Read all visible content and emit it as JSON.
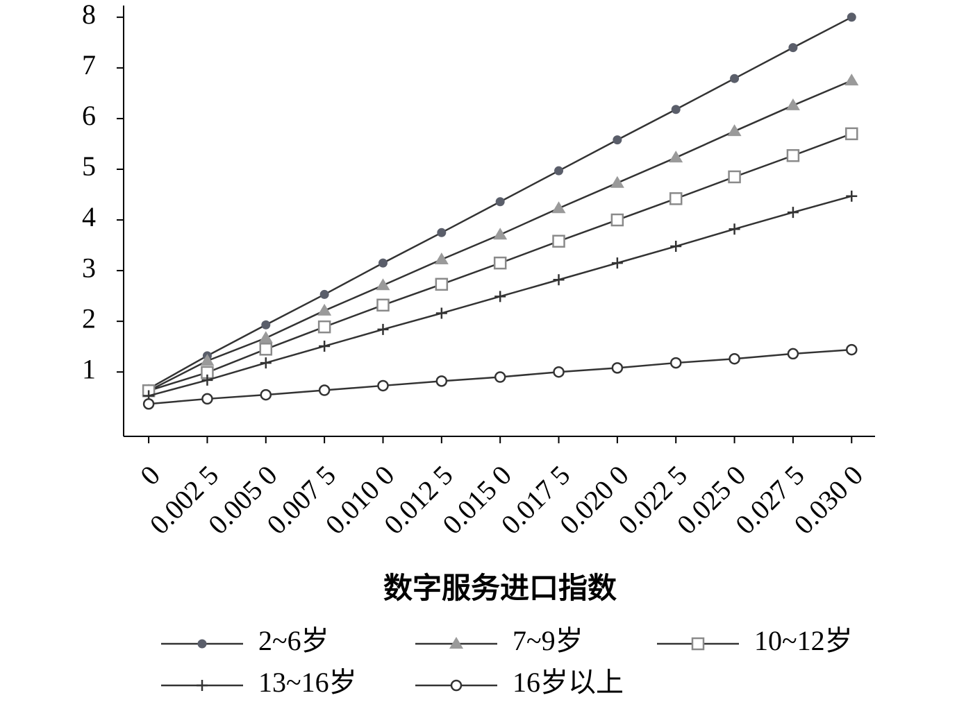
{
  "chart_data": {
    "type": "line",
    "x_label": "数字服务进口指数",
    "x": [
      0,
      0.0025,
      0.005,
      0.0075,
      0.01,
      0.0125,
      0.015,
      0.0175,
      0.02,
      0.0225,
      0.025,
      0.0275,
      0.03
    ],
    "xlim": [
      -0.00107,
      0.031
    ],
    "xticks": [
      0,
      {
        "value": 0.0025,
        "label": "0.002 5"
      },
      {
        "value": 0.005,
        "label": "0.005 0"
      },
      {
        "value": 0.0075,
        "label": "0.007 5"
      },
      {
        "value": 0.01,
        "label": "0.010 0"
      },
      {
        "value": 0.0125,
        "label": "0.012 5"
      },
      {
        "value": 0.015,
        "label": "0.015 0"
      },
      {
        "value": 0.0175,
        "label": "0.017 5"
      },
      {
        "value": 0.02,
        "label": "0.020 0"
      },
      {
        "value": 0.0225,
        "label": "0.022 5"
      },
      {
        "value": 0.025,
        "label": "0.025 0"
      },
      {
        "value": 0.0275,
        "label": "0.027 5"
      },
      {
        "value": 0.03,
        "label": "0.030 0"
      }
    ],
    "ylim": [
      -0.27,
      8.23
    ],
    "yticks": [
      1,
      2,
      3,
      4,
      5,
      6,
      7,
      8
    ],
    "series": [
      {
        "name": "2~6岁",
        "color": "#5a5e6a",
        "marker": "circle",
        "values": [
          0.67,
          1.32,
          1.93,
          2.53,
          3.15,
          3.75,
          4.36,
          4.97,
          5.58,
          6.18,
          6.79,
          7.4,
          8.0
        ]
      },
      {
        "name": "7~9岁",
        "color": "#9a9a9a",
        "marker": "triangle",
        "values": [
          0.63,
          1.22,
          1.67,
          2.21,
          2.71,
          3.22,
          3.71,
          4.23,
          4.73,
          5.23,
          5.75,
          6.26,
          6.75
        ]
      },
      {
        "name": "10~12岁",
        "color": "#8a8a8a",
        "marker": "open-square",
        "values": [
          0.63,
          0.99,
          1.45,
          1.89,
          2.32,
          2.73,
          3.15,
          3.58,
          4.0,
          4.42,
          4.85,
          5.27,
          5.7
        ]
      },
      {
        "name": "13~16岁",
        "color": "#333333",
        "marker": "plus",
        "values": [
          0.53,
          0.84,
          1.18,
          1.51,
          1.84,
          2.16,
          2.49,
          2.82,
          3.15,
          3.48,
          3.82,
          4.15,
          4.47
        ]
      },
      {
        "name": "16岁以上",
        "color": "#333333",
        "marker": "open-circle",
        "values": [
          0.37,
          0.47,
          0.55,
          0.64,
          0.73,
          0.82,
          0.9,
          1.0,
          1.08,
          1.18,
          1.26,
          1.36,
          1.44
        ]
      }
    ]
  }
}
